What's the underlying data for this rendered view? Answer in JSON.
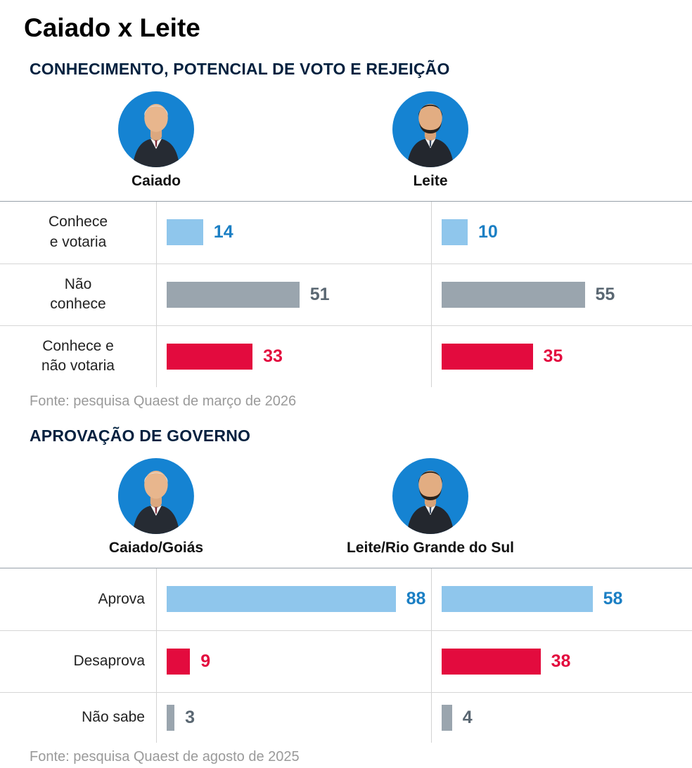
{
  "title": "Caiado x Leite",
  "colors": {
    "blue_bar": "#8fc6ec",
    "blue_text": "#1b7fc4",
    "gray_bar": "#9aa5ae",
    "gray_text": "#5a6772",
    "red_bar": "#e30b3e",
    "red_text": "#e30b3e",
    "heading": "#03213f",
    "avatar_bg": "#1583d2"
  },
  "sections": [
    {
      "heading": "CONHECIMENTO, POTENCIAL DE VOTO E REJEIÇÃO",
      "columns": [
        {
          "name": "Caiado"
        },
        {
          "name": "Leite"
        }
      ],
      "rows": [
        {
          "label": "Conhece\ne votaria",
          "color": "blue",
          "values": [
            14,
            10
          ]
        },
        {
          "label": "Não\nconhece",
          "color": "gray",
          "values": [
            51,
            55
          ]
        },
        {
          "label": "Conhece e\nnão votaria",
          "color": "red",
          "values": [
            33,
            35
          ]
        }
      ],
      "source": "Fonte: pesquisa Quaest de março de 2026"
    },
    {
      "heading": "APROVAÇÃO DE GOVERNO",
      "columns": [
        {
          "name": "Caiado/Goiás"
        },
        {
          "name": "Leite/Rio Grande do Sul"
        }
      ],
      "rows": [
        {
          "label": "Aprova",
          "color": "blue",
          "values": [
            88,
            58
          ]
        },
        {
          "label": "Desaprova",
          "color": "red",
          "values": [
            9,
            38
          ]
        },
        {
          "label": "Não sabe",
          "color": "gray",
          "values": [
            3,
            4
          ]
        }
      ],
      "source": "Fonte: pesquisa Quaest de agosto de 2025"
    }
  ],
  "chart_data": [
    {
      "type": "bar",
      "orientation": "horizontal",
      "title": "CONHECIMENTO, POTENCIAL DE VOTO E REJEIÇÃO",
      "categories": [
        "Conhece e votaria",
        "Não conhece",
        "Conhece e não votaria"
      ],
      "series": [
        {
          "name": "Caiado",
          "values": [
            14,
            51,
            33
          ]
        },
        {
          "name": "Leite",
          "values": [
            10,
            55,
            35
          ]
        }
      ],
      "xlim": [
        0,
        100
      ],
      "grid": false,
      "legend_position": "column-headers-with-portraits",
      "source": "Fonte: pesquisa Quaest de março de 2026"
    },
    {
      "type": "bar",
      "orientation": "horizontal",
      "title": "APROVAÇÃO DE GOVERNO",
      "categories": [
        "Aprova",
        "Desaprova",
        "Não sabe"
      ],
      "series": [
        {
          "name": "Caiado/Goiás",
          "values": [
            88,
            9,
            3
          ]
        },
        {
          "name": "Leite/Rio Grande do Sul",
          "values": [
            58,
            38,
            4
          ]
        }
      ],
      "xlim": [
        0,
        100
      ],
      "grid": false,
      "legend_position": "column-headers-with-portraits",
      "source": "Fonte: pesquisa Quaest de agosto de 2025"
    }
  ]
}
